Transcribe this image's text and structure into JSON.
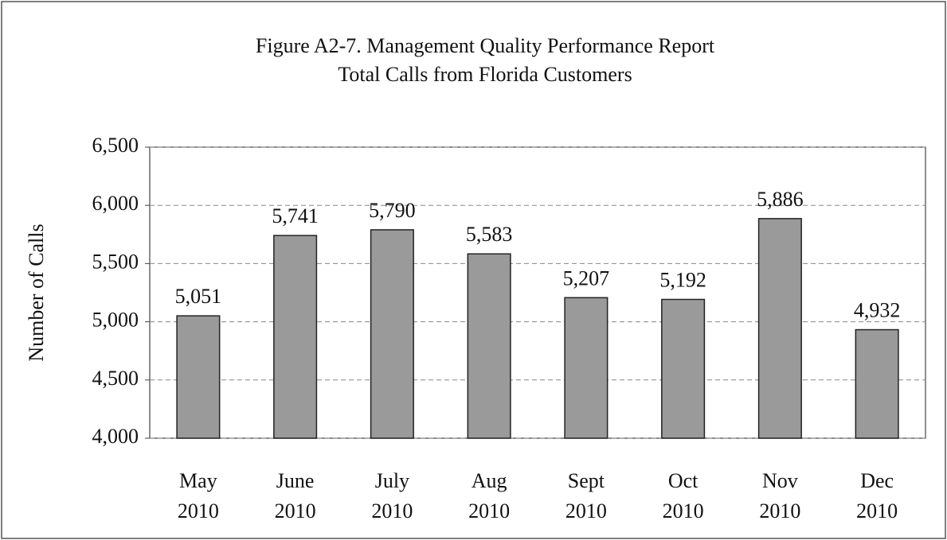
{
  "chart_data": {
    "type": "bar",
    "title": "Figure A2-7.  Management Quality Performance Report",
    "subtitle": "Total Calls from Florida Customers",
    "y_label": "Number of Calls",
    "categories": [
      "May 2010",
      "June 2010",
      "July 2010",
      "Aug 2010",
      "Sept 2010",
      "Oct 2010",
      "Nov 2010",
      "Dec 2010"
    ],
    "values": [
      5051,
      5741,
      5790,
      5583,
      5207,
      5192,
      5886,
      4932
    ],
    "value_labels": [
      "5,051",
      "5,741",
      "5,790",
      "5,583",
      "5,207",
      "5,192",
      "5,886",
      "4,932"
    ],
    "color": "#9a9a9a",
    "ylim": [
      4000,
      6500
    ],
    "yticks": [
      {
        "value": 4000,
        "label": "4,000"
      },
      {
        "value": 4500,
        "label": "4,500"
      },
      {
        "value": 5000,
        "label": "5,000"
      },
      {
        "value": 5500,
        "label": "5,500"
      },
      {
        "value": 6000,
        "label": "6,000"
      },
      {
        "value": 6500,
        "label": "6,500"
      }
    ],
    "grid": true
  }
}
